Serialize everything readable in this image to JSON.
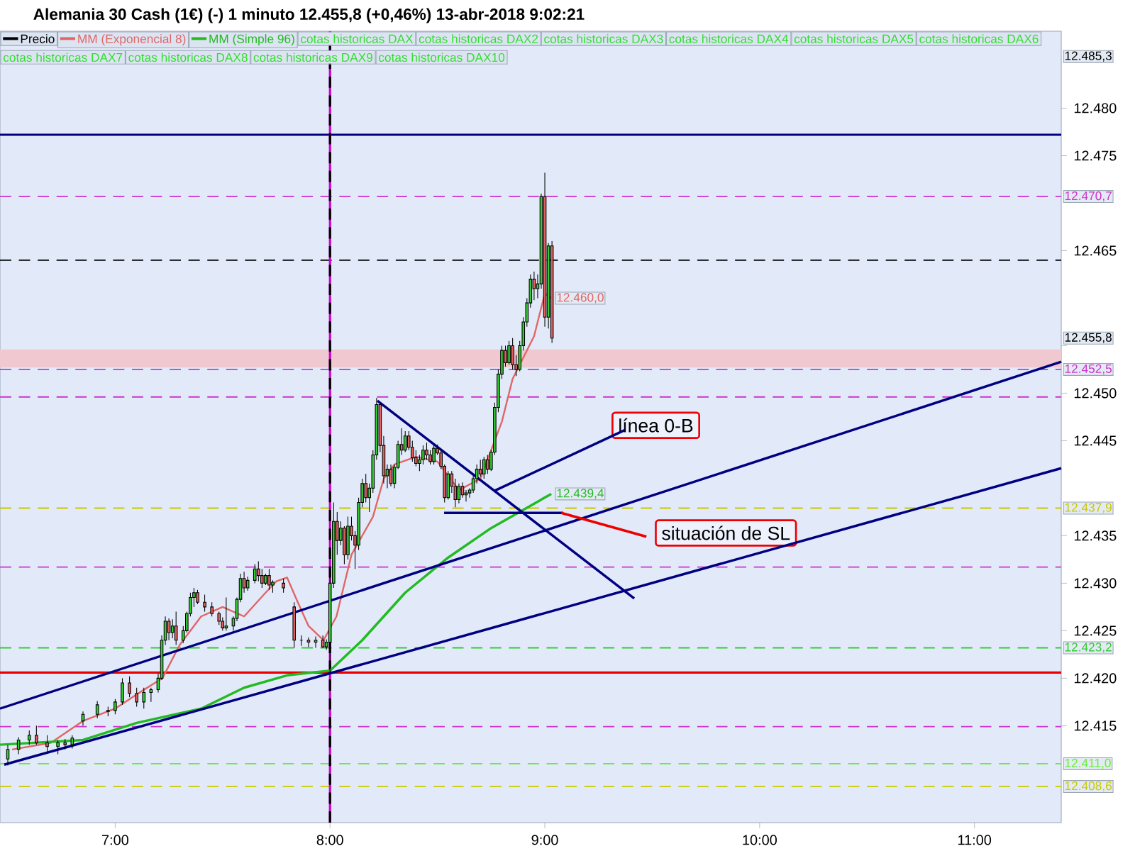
{
  "chart_data": {
    "type": "candlestick",
    "title": "Alemania 30 Cash (1€) (-)   1 minuto   12.455,8 (+0,46%)   13-abr-2018 9:02:21",
    "xlim": [
      6.4637,
      11.404
    ],
    "ylim": [
      12404.8,
      12488.1
    ],
    "xticks": [
      {
        "value": 7,
        "label": "7:00"
      },
      {
        "value": 8,
        "label": "8:00"
      },
      {
        "value": 9,
        "label": "9:00"
      },
      {
        "value": 10,
        "label": "10:00"
      },
      {
        "value": 11,
        "label": "11:00"
      }
    ],
    "yticks": [
      {
        "value": 12415,
        "label": "12.415"
      },
      {
        "value": 12420,
        "label": "12.420"
      },
      {
        "value": 12425,
        "label": "12.425"
      },
      {
        "value": 12430,
        "label": "12.430"
      },
      {
        "value": 12435,
        "label": "12.435"
      },
      {
        "value": 12445,
        "label": "12.445"
      },
      {
        "value": 12450,
        "label": "12.450"
      },
      {
        "value": 12455,
        "label": null
      },
      {
        "value": 12465,
        "label": "12.465"
      },
      {
        "value": 12475,
        "label": "12.475"
      },
      {
        "value": 12480,
        "label": "12.480"
      }
    ],
    "legend": "top left",
    "series": [
      {
        "name": "Precio",
        "color": "#000000",
        "x": [
          6.5,
          6.55,
          6.6,
          6.6333,
          6.6833,
          6.7333,
          6.7667,
          6.8,
          6.85,
          6.9167,
          6.9667,
          7,
          7.0333,
          7.0667,
          7.1,
          7.1333,
          7.1667,
          7.2,
          7.2167,
          7.2333,
          7.25,
          7.2667,
          7.2833,
          7.3167,
          7.3333,
          7.35,
          7.3667,
          7.3833,
          7.4167,
          7.45,
          7.4833,
          7.5,
          7.5167,
          7.55,
          7.5667,
          7.5833,
          7.6,
          7.6167,
          7.65,
          7.6667,
          7.6833,
          7.7,
          7.7167,
          7.7333,
          7.7833,
          7.8333,
          7.8667,
          7.9,
          7.9333,
          7.9667,
          7.9833,
          8,
          8.0167,
          8.0333,
          8.05,
          8.0667,
          8.0833,
          8.1,
          8.1167,
          8.1333,
          8.15,
          8.1667,
          8.1833,
          8.2,
          8.2167,
          8.2333,
          8.25,
          8.2667,
          8.2833,
          8.3,
          8.3167,
          8.3333,
          8.35,
          8.3667,
          8.3833,
          8.4,
          8.4167,
          8.4333,
          8.45,
          8.4667,
          8.4833,
          8.5,
          8.5167,
          8.5333,
          8.55,
          8.5667,
          8.5833,
          8.6,
          8.6167,
          8.6333,
          8.65,
          8.6667,
          8.6833,
          8.7,
          8.7167,
          8.7333,
          8.75,
          8.7667,
          8.7833,
          8.8,
          8.8167,
          8.8333,
          8.85,
          8.8667,
          8.8833,
          8.9,
          8.9167,
          8.9333,
          8.95,
          8.9667,
          8.9833,
          9,
          9.0167,
          9.0333
        ],
        "ohlc": [
          [
            12411.5,
            12413,
            12410.8,
            12412.5
          ],
          [
            12412.5,
            12413.8,
            12412,
            12413.5
          ],
          [
            12413.5,
            12414.5,
            12413,
            12414
          ],
          [
            12414,
            12415,
            12413,
            12413.2
          ],
          [
            12413.2,
            12414,
            12412.3,
            12412.8
          ],
          [
            12412.8,
            12413.5,
            12412,
            12413.2
          ],
          [
            12413.2,
            12413.6,
            12412.5,
            12413
          ],
          [
            12413,
            12414,
            12412.6,
            12413.7
          ],
          [
            12415.5,
            12416.5,
            12415,
            12416.2
          ],
          [
            12416.2,
            12417.6,
            12415.8,
            12417.2
          ],
          [
            12416.5,
            12417,
            12416,
            12416.6
          ],
          [
            12416.6,
            12417.8,
            12416.2,
            12417.5
          ],
          [
            12417.5,
            12420,
            12417.2,
            12419.5
          ],
          [
            12419.5,
            12420.2,
            12418,
            12418.4
          ],
          [
            12418.4,
            12419,
            12417,
            12417.5
          ],
          [
            12417.5,
            12419,
            12416.8,
            12418.5
          ],
          [
            12418.5,
            12419,
            12417.5,
            12418.8
          ],
          [
            12418.8,
            12420.5,
            12418.5,
            12420
          ],
          [
            12420,
            12424.5,
            12419.8,
            12424
          ],
          [
            12424,
            12426.5,
            12423.5,
            12426
          ],
          [
            12426,
            12426.3,
            12424,
            12424.8
          ],
          [
            12424.8,
            12426.2,
            12424.2,
            12425.5
          ],
          [
            12425.5,
            12427,
            12423.5,
            12424
          ],
          [
            12424,
            12425.5,
            12423.7,
            12425
          ],
          [
            12425,
            12427,
            12424.8,
            12426.8
          ],
          [
            12426.8,
            12429,
            12426.5,
            12428.5
          ],
          [
            12428.5,
            12429.5,
            12427.5,
            12429
          ],
          [
            12429,
            12429.3,
            12427.8,
            12428
          ],
          [
            12428,
            12428.8,
            12427,
            12427.5
          ],
          [
            12427.5,
            12428,
            12426.5,
            12426.8
          ],
          [
            12426.8,
            12427,
            12425.6,
            12426
          ],
          [
            12426,
            12426.4,
            12425,
            12425.3
          ],
          [
            12425.3,
            12428.5,
            12425,
            12425.5
          ],
          [
            12425.5,
            12426.5,
            12425,
            12426.3
          ],
          [
            12426.3,
            12428.5,
            12426,
            12428.3
          ],
          [
            12428.3,
            12431,
            12428,
            12430.5
          ],
          [
            12430.5,
            12431.2,
            12429,
            12429.5
          ],
          [
            12429.5,
            12430.7,
            12429.2,
            12430.3
          ],
          [
            12430.3,
            12432,
            12430,
            12431.5
          ],
          [
            12431.5,
            12432.3,
            12430.2,
            12430.8
          ],
          [
            12430.8,
            12431.5,
            12429.5,
            12430
          ],
          [
            12430,
            12431,
            12429.8,
            12430.8
          ],
          [
            12430.8,
            12431.5,
            12429.3,
            12429.8
          ],
          [
            12429.8,
            12430.3,
            12429,
            12430.1
          ],
          [
            12430,
            12430.5,
            12429,
            12429.5
          ],
          [
            12427.5,
            12428,
            12423.2,
            12424
          ],
          [
            12424,
            12424.5,
            12423.4,
            12424
          ],
          [
            12424,
            12424.3,
            12423.3,
            12423.8
          ],
          [
            12423.8,
            12424.4,
            12423.2,
            12424
          ],
          [
            12424,
            12424.5,
            12423.2,
            12423.3
          ],
          [
            12423.3,
            12424.1,
            12423,
            12423.8
          ],
          [
            12423.8,
            12431,
            12420.6,
            12430
          ],
          [
            12430,
            12438.5,
            12429.5,
            12436.5
          ],
          [
            12436.5,
            12437.5,
            12433,
            12434.5
          ],
          [
            12434.5,
            12436.5,
            12434,
            12435.8
          ],
          [
            12435.8,
            12436,
            12432,
            12433
          ],
          [
            12433,
            12437,
            12432.5,
            12436
          ],
          [
            12436,
            12437,
            12434.5,
            12435
          ],
          [
            12435,
            12435.5,
            12431.5,
            12434
          ],
          [
            12434,
            12439,
            12433.5,
            12438.5
          ],
          [
            12438.5,
            12441,
            12438,
            12440.5
          ],
          [
            12440.5,
            12441.5,
            12438.5,
            12439
          ],
          [
            12439,
            12440.5,
            12437.5,
            12440
          ],
          [
            12440,
            12444,
            12439.5,
            12443.5
          ],
          [
            12443.5,
            12449.5,
            12443,
            12448.8
          ],
          [
            12448.8,
            12449,
            12443.8,
            12444.5
          ],
          [
            12444.5,
            12445.5,
            12440.5,
            12441.3
          ],
          [
            12441.3,
            12442.5,
            12440,
            12442
          ],
          [
            12442,
            12442.5,
            12440.2,
            12440.5
          ],
          [
            12440.5,
            12442.5,
            12440,
            12442.2
          ],
          [
            12442.2,
            12445,
            12442,
            12444.6
          ],
          [
            12444.6,
            12446.3,
            12443.5,
            12444
          ],
          [
            12444,
            12446,
            12443.8,
            12445.5
          ],
          [
            12445.5,
            12446,
            12444,
            12444.3
          ],
          [
            12444.3,
            12445,
            12442.8,
            12443.2
          ],
          [
            12443.2,
            12444,
            12442.3,
            12442.6
          ],
          [
            12442.6,
            12443.5,
            12441.8,
            12443
          ],
          [
            12443,
            12444.5,
            12442.5,
            12444
          ],
          [
            12444,
            12444.8,
            12443,
            12443.5
          ],
          [
            12443.5,
            12444,
            12442.5,
            12442.8
          ],
          [
            12442.8,
            12444.5,
            12442.5,
            12444.2
          ],
          [
            12444.2,
            12444.6,
            12443.5,
            12443.7
          ],
          [
            12443.7,
            12444,
            12442,
            12442.3
          ],
          [
            12442.3,
            12442.5,
            12438.5,
            12439
          ],
          [
            12439,
            12441.8,
            12438.8,
            12441.5
          ],
          [
            12441.5,
            12441.8,
            12439.5,
            12440.2
          ],
          [
            12440.2,
            12441,
            12438,
            12438.8
          ],
          [
            12438.8,
            12440.5,
            12438.4,
            12440.2
          ],
          [
            12440.2,
            12440.6,
            12439,
            12439.3
          ],
          [
            12439.3,
            12439.8,
            12438.6,
            12439.5
          ],
          [
            12439.5,
            12440,
            12439,
            12439.8
          ],
          [
            12439.8,
            12441.3,
            12439.5,
            12441
          ],
          [
            12441,
            12442.5,
            12440.5,
            12442
          ],
          [
            12442,
            12443,
            12441.2,
            12441.5
          ],
          [
            12441.5,
            12443.3,
            12441,
            12443
          ],
          [
            12443,
            12443.5,
            12441.5,
            12442
          ],
          [
            12442,
            12444,
            12441.8,
            12443.8
          ],
          [
            12443.8,
            12449,
            12443.5,
            12448.5
          ],
          [
            12448.5,
            12452.5,
            12448,
            12452
          ],
          [
            12452,
            12455,
            12451.5,
            12454.5
          ],
          [
            12454.5,
            12455,
            12452.8,
            12453.2
          ],
          [
            12453.2,
            12455.5,
            12453,
            12455
          ],
          [
            12455,
            12455.8,
            12452.5,
            12453
          ],
          [
            12453,
            12454,
            12451.8,
            12452.5
          ],
          [
            12452.5,
            12455.5,
            12452.3,
            12455
          ],
          [
            12455,
            12458,
            12454.5,
            12457.5
          ],
          [
            12457.5,
            12460,
            12457,
            12459.5
          ],
          [
            12459.5,
            12462.5,
            12459,
            12462
          ],
          [
            12462,
            12462.8,
            12459.8,
            12461
          ],
          [
            12461,
            12462.5,
            12460,
            12461.5
          ],
          [
            12461.5,
            12471,
            12461,
            12470.7
          ],
          [
            12470.7,
            12473.2,
            12457,
            12458
          ],
          [
            12458,
            12465.8,
            12456.8,
            12465.5
          ],
          [
            12465.5,
            12466,
            12455.3,
            12455.8
          ]
        ],
        "value_labels": [
          null,
          null,
          null,
          null,
          null,
          null,
          null,
          null,
          null,
          null,
          null,
          null,
          null,
          null,
          null,
          null,
          null,
          null,
          null,
          null,
          null,
          null,
          null,
          null,
          null,
          null,
          null,
          null,
          null,
          null,
          null,
          null,
          null,
          null,
          null,
          null,
          null,
          null,
          null,
          null,
          null,
          null,
          null,
          null,
          null,
          null,
          null,
          null,
          null,
          null,
          null,
          null,
          null,
          null,
          null,
          null,
          null,
          null,
          null,
          null,
          null,
          null,
          null,
          null,
          null,
          null,
          null,
          null,
          null,
          null,
          null,
          null,
          null,
          null,
          null,
          null,
          null,
          null,
          null,
          null,
          null,
          null,
          null,
          null,
          null,
          null,
          null,
          null,
          null,
          null,
          null,
          null,
          null,
          null,
          null,
          null,
          null,
          null,
          null,
          null,
          null,
          null,
          null,
          null,
          null,
          null,
          null,
          null,
          null,
          null,
          null,
          null,
          null,
          "12.455,8"
        ]
      },
      {
        "type": "line",
        "name": "MM (Exponencial 8)",
        "color": "#e06666",
        "x": [
          6.52,
          6.7,
          6.85,
          7.0,
          7.1,
          7.22,
          7.3,
          7.4,
          7.5,
          7.6,
          7.7,
          7.75,
          7.8,
          7.85,
          7.9,
          7.97,
          8.03,
          8.1,
          8.2,
          8.25,
          8.3,
          8.4,
          8.5,
          8.6,
          8.7,
          8.8,
          8.85,
          8.95,
          9.0,
          9.03
        ],
        "values": [
          12412.5,
          12413.2,
          12415.5,
          12416.8,
          12418.3,
          12420,
          12423.5,
          12426.5,
          12427.5,
          12426.5,
          12429,
          12430.2,
          12430.6,
          12428,
          12425.5,
          12424,
          12426.5,
          12433,
          12437,
          12441,
          12442.5,
          12443.3,
          12442.8,
          12439.8,
          12441,
          12447,
          12451.5,
          12456,
          12460.5,
          12460
        ],
        "value_labels": [
          null,
          null,
          null,
          null,
          null,
          null,
          null,
          null,
          null,
          null,
          null,
          null,
          null,
          null,
          null,
          null,
          null,
          null,
          null,
          null,
          null,
          null,
          null,
          null,
          null,
          null,
          null,
          null,
          null,
          "12.460,0"
        ]
      },
      {
        "type": "line",
        "name": "MM (Simple 96)",
        "color": "#22bb22",
        "x": [
          6.4637,
          6.85,
          7.1,
          7.4,
          7.6,
          7.8,
          8.0,
          8.15,
          8.35,
          8.55,
          8.75,
          9.03
        ],
        "values": [
          12413,
          12413.5,
          12415.3,
          12416.8,
          12419,
          12420.3,
          12420.8,
          12424,
          12429,
          12432.7,
          12435.8,
          12439.4
        ],
        "value_labels": [
          null,
          null,
          null,
          null,
          null,
          null,
          null,
          null,
          null,
          null,
          null,
          "12.439,4"
        ]
      },
      {
        "type": "line",
        "color": "#000080",
        "x": [
          6.4637,
          11.404
        ],
        "values": [
          12416.8,
          12453.3
        ]
      },
      {
        "type": "line",
        "color": "#000080",
        "x": [
          6.4835,
          11.404
        ],
        "values": [
          12410.9,
          12442.1
        ]
      },
      {
        "type": "line",
        "color": "#000080",
        "x": [
          8.2206,
          9.4162
        ],
        "values": [
          12449.2,
          12428.4
        ]
      },
      {
        "type": "line",
        "color": "#000080",
        "x": [
          8.5311,
          9.0859
        ],
        "values": [
          12437.4,
          12437.4
        ]
      },
      {
        "type": "line",
        "color": "#000080",
        "x": [
          8.7636,
          9.3712
        ],
        "values": [
          12439.7,
          12446.1
        ]
      },
      {
        "type": "line",
        "color": "#ee0000",
        "x": [
          9.0766,
          9.4729
        ],
        "values": [
          12437.4,
          12434.9
        ]
      }
    ],
    "ref_lines": [
      {
        "axis": "y",
        "value": 12477.2,
        "label": null,
        "color": "#000080",
        "line_style": "solid"
      },
      {
        "axis": "y",
        "value": 12470.7,
        "label": "12.470,7",
        "color": "#cc33cc",
        "line_style": "dashed"
      },
      {
        "axis": "y",
        "value": 12464.0,
        "label": null,
        "color": "#000000",
        "line_style": "dashed"
      },
      {
        "axis": "y",
        "value": 12452.5,
        "label": "12.452,5",
        "color": "#cc33cc",
        "line_style": "dashed"
      },
      {
        "axis": "y",
        "value": 12449.6,
        "label": null,
        "color": "#cc33cc",
        "line_style": "dashed"
      },
      {
        "axis": "y",
        "value": 12437.9,
        "label": "12.437,9",
        "color": "#c8c800",
        "line_style": "dashed"
      },
      {
        "axis": "y",
        "value": 12431.7,
        "label": null,
        "color": "#cc33cc",
        "line_style": "dashed"
      },
      {
        "axis": "y",
        "value": 12423.2,
        "label": "12.423,2",
        "color": "#33cc33",
        "line_style": "dashed"
      },
      {
        "axis": "y",
        "value": 12420.6,
        "label": null,
        "color": "#ee0000",
        "line_style": "solid"
      },
      {
        "axis": "y",
        "value": 12414.9,
        "label": null,
        "color": "#cc33cc",
        "line_style": "dashed"
      },
      {
        "axis": "y",
        "value": 12411.0,
        "label": "12.411,0",
        "color": "#66ee33",
        "line_style": "dashed"
      },
      {
        "axis": "y",
        "value": 12408.6,
        "label": "12.408,6",
        "color": "#c8c800",
        "line_style": "dashed"
      },
      {
        "axis": "x",
        "value": 8,
        "label": null,
        "color": "#cc00cc",
        "line_style": "solid"
      },
      {
        "axis": "x",
        "value": 8,
        "label": null,
        "color": "#000000",
        "line_style": "dashed"
      }
    ],
    "bands": [
      {
        "axis": "y",
        "from": 12452.7,
        "to": 12454.6,
        "label": null,
        "color": "#f0c8d0"
      }
    ],
    "annotations": [
      "cotas historicas DAX",
      "cotas historicas DAX2",
      "cotas historicas DAX3",
      "cotas historicas DAX4",
      "cotas historicas DAX5",
      "cotas historicas DAX6",
      "cotas historicas DAX7",
      "cotas historicas DAX8",
      "cotas historicas DAX9",
      "cotas historicas DAX10",
      "línea 0-B",
      "situación de SL",
      "12.485,3"
    ]
  }
}
